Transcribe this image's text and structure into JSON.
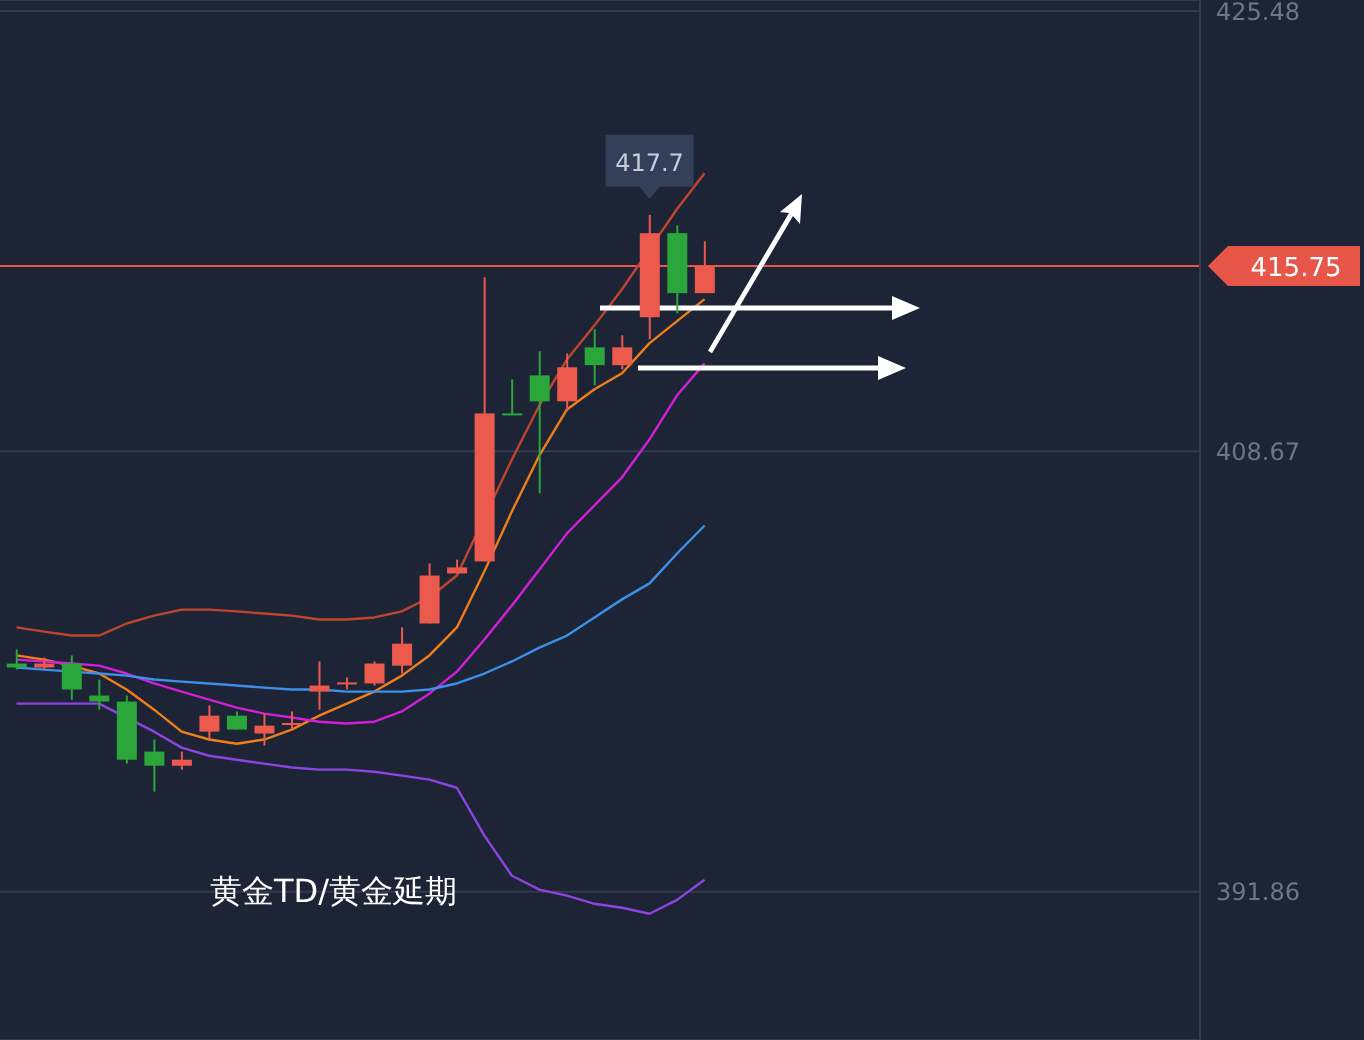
{
  "chart_data": {
    "type": "candlestick",
    "title": "黄金TD/黄金延期",
    "categories": [
      null,
      null,
      null,
      null,
      null,
      null,
      null,
      null,
      null,
      null,
      null,
      null,
      null,
      null,
      null,
      null,
      null,
      null,
      null,
      null,
      null,
      null,
      null,
      null,
      null,
      null
    ],
    "ohlc": [
      [
        400.57,
        401.11,
        400.34,
        400.42
      ],
      [
        400.42,
        400.8,
        400.34,
        400.57
      ],
      [
        400.57,
        400.88,
        399.19,
        399.58
      ],
      [
        399.35,
        399.96,
        398.81,
        399.12
      ],
      [
        399.12,
        399.35,
        396.75,
        396.9
      ],
      [
        397.21,
        397.67,
        395.68,
        396.67
      ],
      [
        396.67,
        397.21,
        396.52,
        396.9
      ],
      [
        397.97,
        398.97,
        397.67,
        398.58
      ],
      [
        398.58,
        398.74,
        398.05,
        398.05
      ],
      [
        397.9,
        398.66,
        397.44,
        398.2
      ],
      [
        398.28,
        398.74,
        398.05,
        398.3
      ],
      [
        399.5,
        400.65,
        398.81,
        399.73
      ],
      [
        399.81,
        400.04,
        399.58,
        399.85
      ],
      [
        399.81,
        400.65,
        399.73,
        400.57
      ],
      [
        400.49,
        401.95,
        400.19,
        401.33
      ],
      [
        402.1,
        404.39,
        402.1,
        403.93
      ],
      [
        404.01,
        404.54,
        404.01,
        404.24
      ],
      [
        404.47,
        415.32,
        404.47,
        410.12
      ],
      [
        410.12,
        411.42,
        410.05,
        410.1
      ],
      [
        411.57,
        412.49,
        407.07,
        410.58
      ],
      [
        410.58,
        412.41,
        410.2,
        411.88
      ],
      [
        412.64,
        413.33,
        411.19,
        411.96
      ],
      [
        411.96,
        413.1,
        411.8,
        412.64
      ],
      [
        413.79,
        417.7,
        412.95,
        417.0
      ],
      [
        417.0,
        417.3,
        413.94,
        414.71
      ],
      [
        414.71,
        416.69,
        414.71,
        415.75
      ]
    ],
    "colors": [
      "#2aa63a",
      "#ec5a4e",
      "#2aa63a",
      "#2aa63a",
      "#2aa63a",
      "#2aa63a",
      "#ec5a4e",
      "#ec5a4e",
      "#2aa63a",
      "#ec5a4e",
      "#ec5a4e",
      "#ec5a4e",
      "#ec5a4e",
      "#ec5a4e",
      "#ec5a4e",
      "#ec5a4e",
      "#ec5a4e",
      "#ec5a4e",
      "#2aa63a",
      "#2aa63a",
      "#ec5a4e",
      "#2aa63a",
      "#ec5a4e",
      "#ec5a4e",
      "#2aa63a",
      "#ec5a4e"
    ],
    "series": [
      {
        "type": "line",
        "color": "#c0452f",
        "values": [
          401.95,
          401.79,
          401.64,
          401.64,
          402.1,
          402.4,
          402.63,
          402.63,
          402.56,
          402.48,
          402.4,
          402.25,
          402.25,
          402.33,
          402.56,
          403.09,
          403.93,
          null,
          408.36,
          410.43,
          412.18,
          413.48,
          414.86,
          null,
          417.92,
          419.29
        ]
      },
      {
        "type": "line",
        "color": "#f07f1a",
        "values": [
          400.88,
          400.72,
          400.49,
          400.19,
          399.58,
          398.81,
          397.97,
          397.67,
          397.51,
          397.67,
          398.05,
          398.58,
          399.04,
          399.5,
          400.11,
          400.88,
          401.95,
          404.09,
          406.38,
          408.52,
          410.27,
          411.04,
          411.65,
          412.8,
          413.64,
          414.48
        ]
      },
      {
        "type": "line",
        "color": "#d21fd8",
        "values": [
          400.72,
          400.65,
          400.57,
          400.49,
          400.19,
          399.81,
          399.5,
          399.19,
          398.89,
          398.66,
          398.51,
          398.35,
          398.28,
          398.35,
          398.74,
          399.42,
          400.26,
          401.49,
          402.79,
          404.16,
          405.54,
          406.61,
          407.68,
          409.13,
          410.81,
          412.03
        ]
      },
      {
        "type": "line",
        "color": "#3d8fe8",
        "values": [
          400.42,
          400.34,
          400.26,
          400.19,
          400.11,
          399.96,
          399.88,
          399.81,
          399.73,
          399.65,
          399.58,
          399.58,
          399.5,
          399.5,
          399.5,
          399.58,
          399.81,
          400.19,
          400.65,
          401.18,
          401.64,
          402.33,
          403.02,
          403.63,
          404.77,
          405.84
        ]
      },
      {
        "type": "line",
        "color": "#8e44e0",
        "values": [
          399.04,
          399.04,
          399.04,
          399.04,
          null,
          397.97,
          397.36,
          397.05,
          396.9,
          396.75,
          396.6,
          396.52,
          396.52,
          396.44,
          396.29,
          396.14,
          395.83,
          394.0,
          392.47,
          391.94,
          391.71,
          391.4,
          391.25,
          391.02,
          391.55,
          392.32
        ]
      }
    ],
    "ylim": [
      386.2,
      425.9
    ],
    "yticks": [
      391.86,
      408.67,
      425.48
    ],
    "grid": "y",
    "tick_labels": "y",
    "ref_lines": [
      {
        "axis": "y",
        "value": 415.75,
        "label": "415.75",
        "color": "#e8564a"
      }
    ],
    "annotations": [
      {
        "text": "417.7",
        "y": 417.7
      }
    ]
  }
}
